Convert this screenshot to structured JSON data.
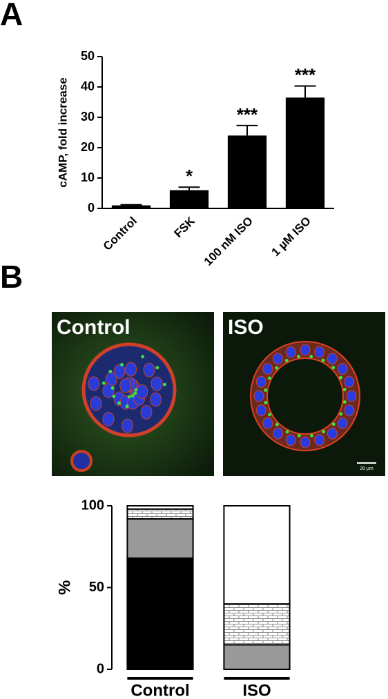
{
  "panel_labels": [
    "A",
    "B"
  ],
  "images": [
    {
      "label": "Control"
    },
    {
      "label": "ISO",
      "scale_bar": "20 µm"
    }
  ],
  "chart_data": [
    {
      "type": "bar",
      "y_label": "cAMP, fold increase",
      "categories": [
        "Control",
        "FSK",
        "100 nM ISO",
        "1 µM ISO"
      ],
      "values": [
        1,
        6,
        24,
        36.5
      ],
      "errors": [
        0.2,
        1,
        3.3,
        3.8
      ],
      "color": "#000000",
      "annotations": [
        {
          "category": "FSK",
          "text": "*"
        },
        {
          "category": "100 nM ISO",
          "text": "***"
        },
        {
          "category": "1 µM ISO",
          "text": "***"
        }
      ],
      "ylim": [
        0,
        50
      ],
      "yticks": [
        0,
        10,
        20,
        30,
        40,
        50
      ]
    },
    {
      "type": "stacked_bar",
      "y_label": "%",
      "categories": [
        "Control",
        "ISO"
      ],
      "series": [
        {
          "color": "#000000",
          "values": [
            68,
            0
          ]
        },
        {
          "color": "#999999",
          "values": [
            24,
            15
          ]
        },
        {
          "color": "#ffffff",
          "pattern": "brick",
          "values": [
            6,
            25
          ]
        },
        {
          "color": "#ffffff",
          "values": [
            2,
            60
          ]
        }
      ],
      "ylim": [
        0,
        100
      ],
      "yticks": [
        0,
        50,
        100
      ]
    }
  ]
}
